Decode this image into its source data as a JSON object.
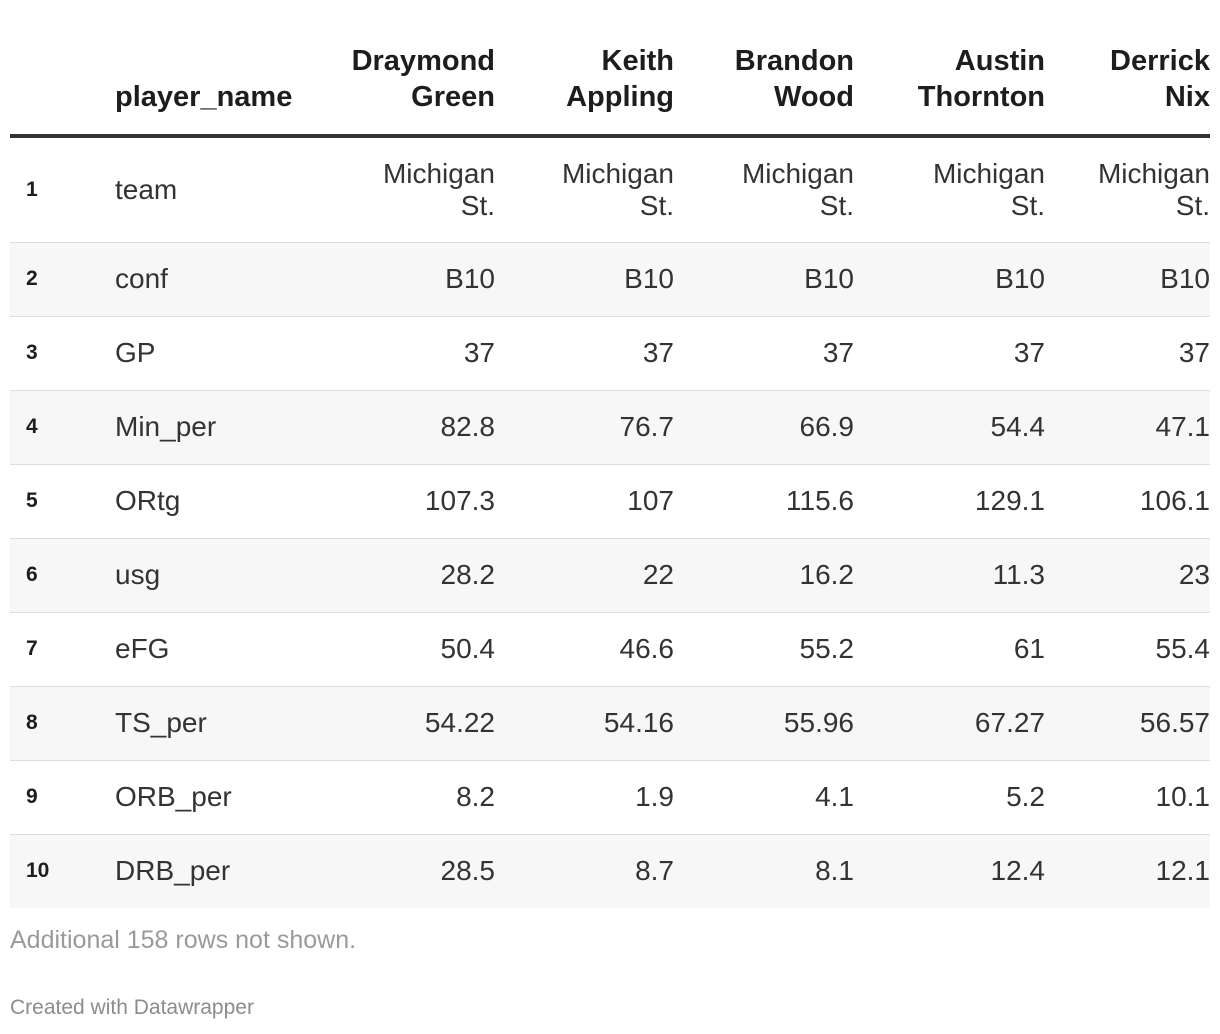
{
  "table": {
    "header_first": "player_name",
    "players": [
      [
        "Draymond",
        "Green"
      ],
      [
        "Keith",
        "Appling"
      ],
      [
        "Brandon",
        "Wood"
      ],
      [
        "Austin",
        "Thornton"
      ],
      [
        "Derrick",
        "Nix"
      ]
    ],
    "rows": [
      {
        "index": "1",
        "stat": "team",
        "values": [
          [
            "Michigan",
            "St."
          ],
          [
            "Michigan",
            "St."
          ],
          [
            "Michigan",
            "St."
          ],
          [
            "Michigan",
            "St."
          ],
          [
            "Michigan",
            "St."
          ]
        ]
      },
      {
        "index": "2",
        "stat": "conf",
        "values": [
          "B10",
          "B10",
          "B10",
          "B10",
          "B10"
        ]
      },
      {
        "index": "3",
        "stat": "GP",
        "values": [
          "37",
          "37",
          "37",
          "37",
          "37"
        ]
      },
      {
        "index": "4",
        "stat": "Min_per",
        "values": [
          "82.8",
          "76.7",
          "66.9",
          "54.4",
          "47.1"
        ]
      },
      {
        "index": "5",
        "stat": "ORtg",
        "values": [
          "107.3",
          "107",
          "115.6",
          "129.1",
          "106.1"
        ]
      },
      {
        "index": "6",
        "stat": "usg",
        "values": [
          "28.2",
          "22",
          "16.2",
          "11.3",
          "23"
        ]
      },
      {
        "index": "7",
        "stat": "eFG",
        "values": [
          "50.4",
          "46.6",
          "55.2",
          "61",
          "55.4"
        ]
      },
      {
        "index": "8",
        "stat": "TS_per",
        "values": [
          "54.22",
          "54.16",
          "55.96",
          "67.27",
          "56.57"
        ]
      },
      {
        "index": "9",
        "stat": "ORB_per",
        "values": [
          "8.2",
          "1.9",
          "4.1",
          "5.2",
          "10.1"
        ]
      },
      {
        "index": "10",
        "stat": "DRB_per",
        "values": [
          "28.5",
          "8.7",
          "8.1",
          "12.4",
          "12.1"
        ]
      }
    ]
  },
  "footer": {
    "note": "Additional 158 rows not shown.",
    "credit": "Created with Datawrapper"
  }
}
